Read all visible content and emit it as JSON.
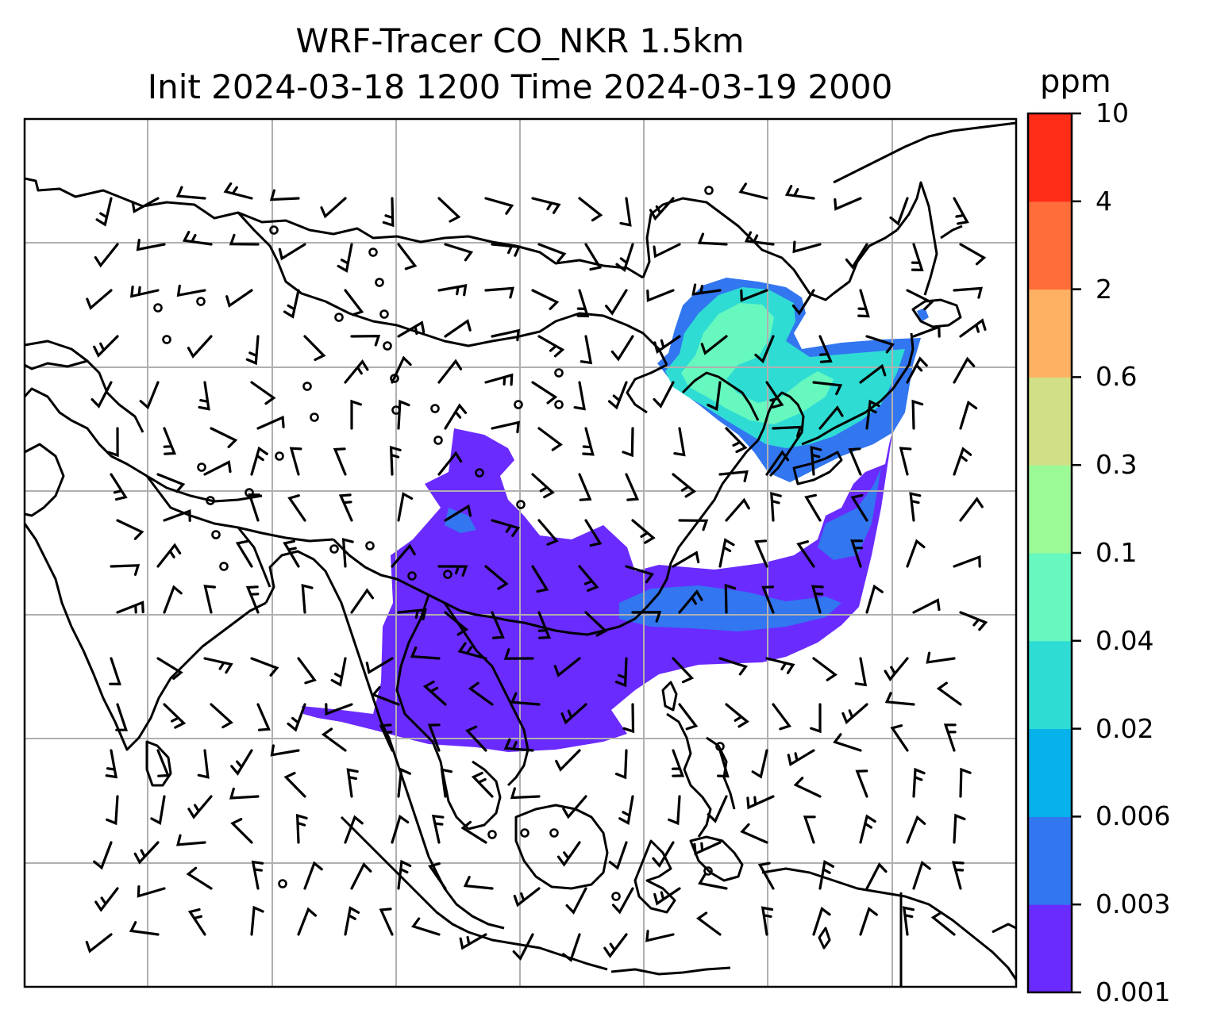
{
  "title": {
    "line1": "WRF-Tracer CO_NKR 1.5km",
    "line2": "Init 2024-03-18 1200 Time 2024-03-19 2000"
  },
  "colorbar": {
    "unit": "ppm",
    "ticks": [
      "0.001",
      "0.003",
      "0.006",
      "0.02",
      "0.04",
      "0.1",
      "0.3",
      "0.6",
      "2",
      "4",
      "10"
    ],
    "levels": [
      {
        "range": "0.001-0.003",
        "color": "#6a2bff"
      },
      {
        "range": "0.003-0.006",
        "color": "#3276f0"
      },
      {
        "range": "0.006-0.02",
        "color": "#07b2ea"
      },
      {
        "range": "0.02-0.04",
        "color": "#2fdcd4"
      },
      {
        "range": "0.04-0.1",
        "color": "#66f8be"
      },
      {
        "range": "0.1-0.3",
        "color": "#9bf996"
      },
      {
        "range": "0.3-0.6",
        "color": "#d1e086"
      },
      {
        "range": "0.6-2",
        "color": "#feb162"
      },
      {
        "range": "2-4",
        "color": "#ff6e3a"
      },
      {
        "range": "4-10",
        "color": "#ff2c18"
      }
    ]
  },
  "map": {
    "gridlines": true,
    "grid_color": "#b0b0b0",
    "coastline_color": "#000000",
    "wind_barb_color": "#000000"
  }
}
